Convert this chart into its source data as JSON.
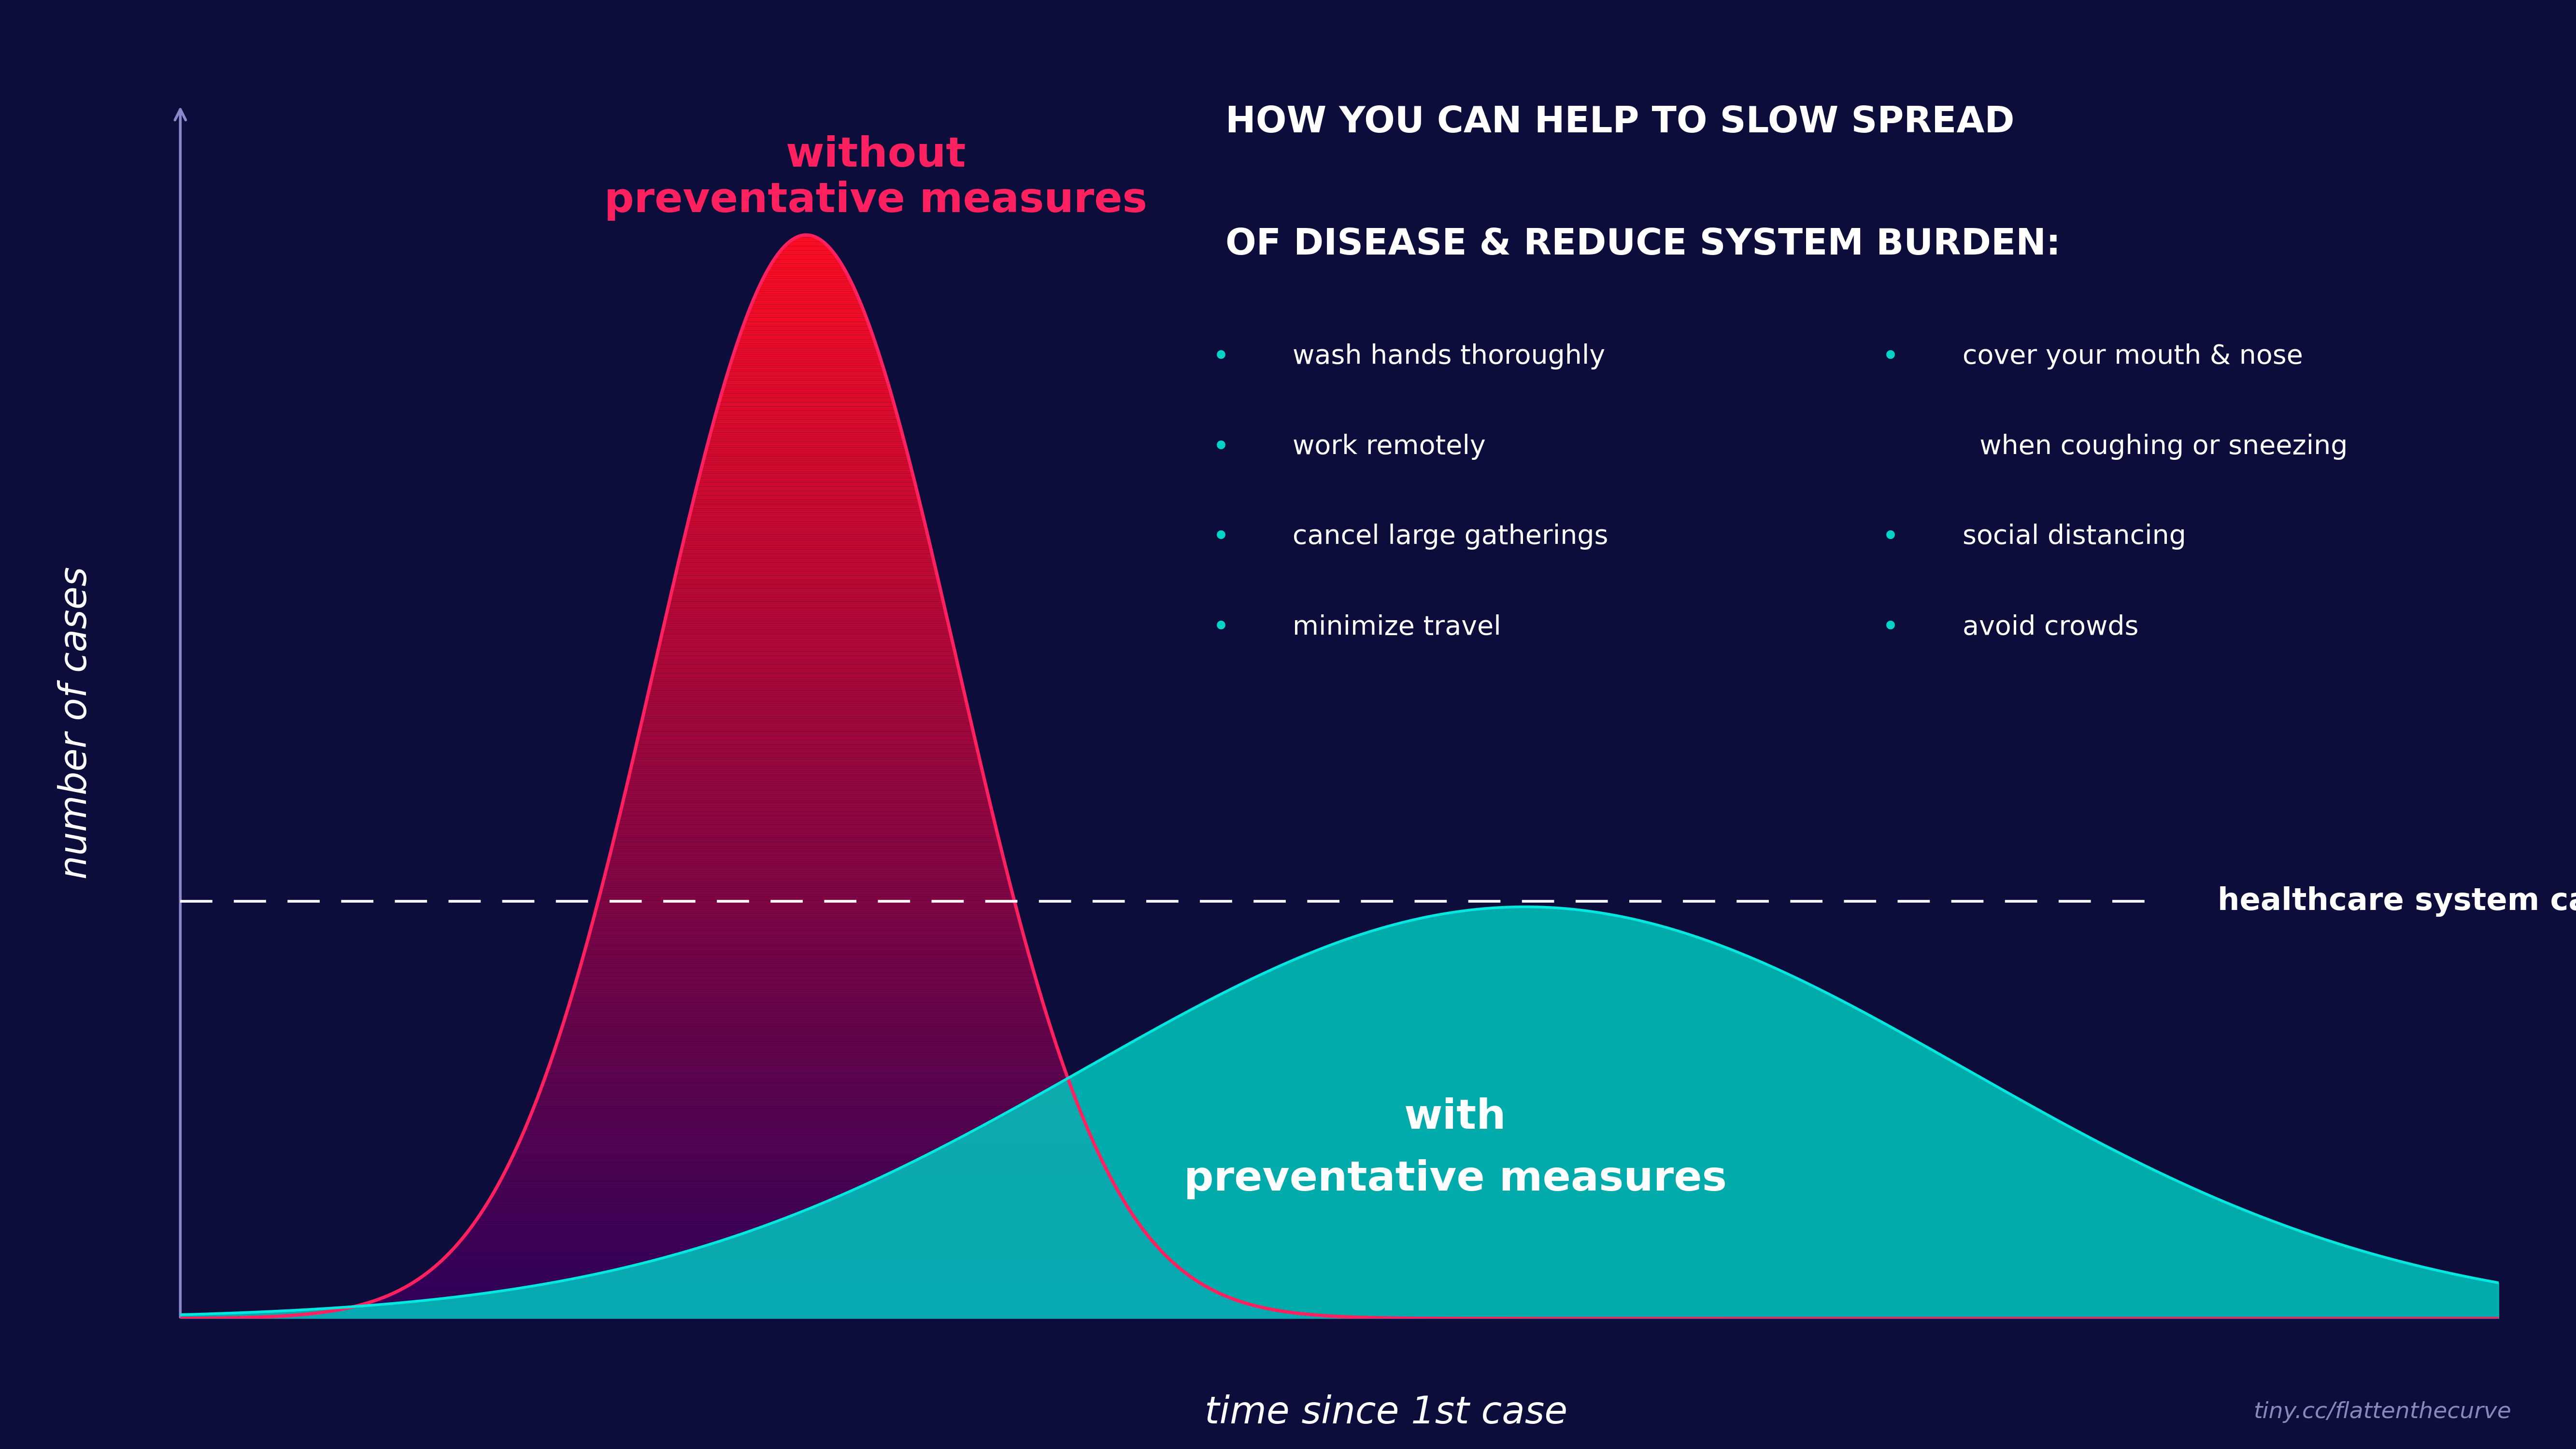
{
  "background_color": "#0d0d3b",
  "fig_width": 53.33,
  "fig_height": 30.0,
  "axes_bg": "#0d0d3b",
  "curve1_line_color": "#ff2060",
  "curve1_mean": 2.7,
  "curve1_std": 0.65,
  "curve1_amplitude": 10.0,
  "curve2_color_fill": "#00c8c0",
  "curve2_color_line": "#00e8e0",
  "curve2_mean": 5.8,
  "curve2_std": 1.9,
  "curve2_amplitude": 3.8,
  "healthcare_line_y": 3.85,
  "healthcare_line_color": "#ffffff",
  "label1_line1": "without",
  "label1_line2": "preventative measures",
  "label1_color": "#ff2060",
  "label2_line1": "with",
  "label2_line2": "preventative measures",
  "label2_color": "#ffffff",
  "healthcare_label": "healthcare system capacity",
  "healthcare_label_color": "#ffffff",
  "xlabel": "time since 1st case",
  "ylabel": "number of cases",
  "xlabel_color": "#ffffff",
  "ylabel_color": "#ffffff",
  "box_bg_color": "#3355dd",
  "box_title_line1": "HOW YOU CAN HELP TO SLOW SPREAD",
  "box_title_line2": "OF DISEASE & REDUCE SYSTEM BURDEN:",
  "box_title_color": "#ffffff",
  "box_bullet_color": "#00d4c8",
  "box_text_color": "#ffffff",
  "left_bullets": [
    "wash hands thoroughly",
    "work remotely",
    "cancel large gatherings",
    "minimize travel"
  ],
  "right_bullets_line1": "cover your mouth & nose",
  "right_bullets_line2": "  when coughing or sneezing",
  "right_bullets_rest": [
    "social distancing",
    "avoid crowds"
  ],
  "credit_text": "tiny.cc/flattenthecurve",
  "credit_color": "#8888bb",
  "xlim": [
    0,
    10
  ],
  "ylim": [
    0,
    11.5
  ],
  "axis_arrow_color": "#8888cc"
}
